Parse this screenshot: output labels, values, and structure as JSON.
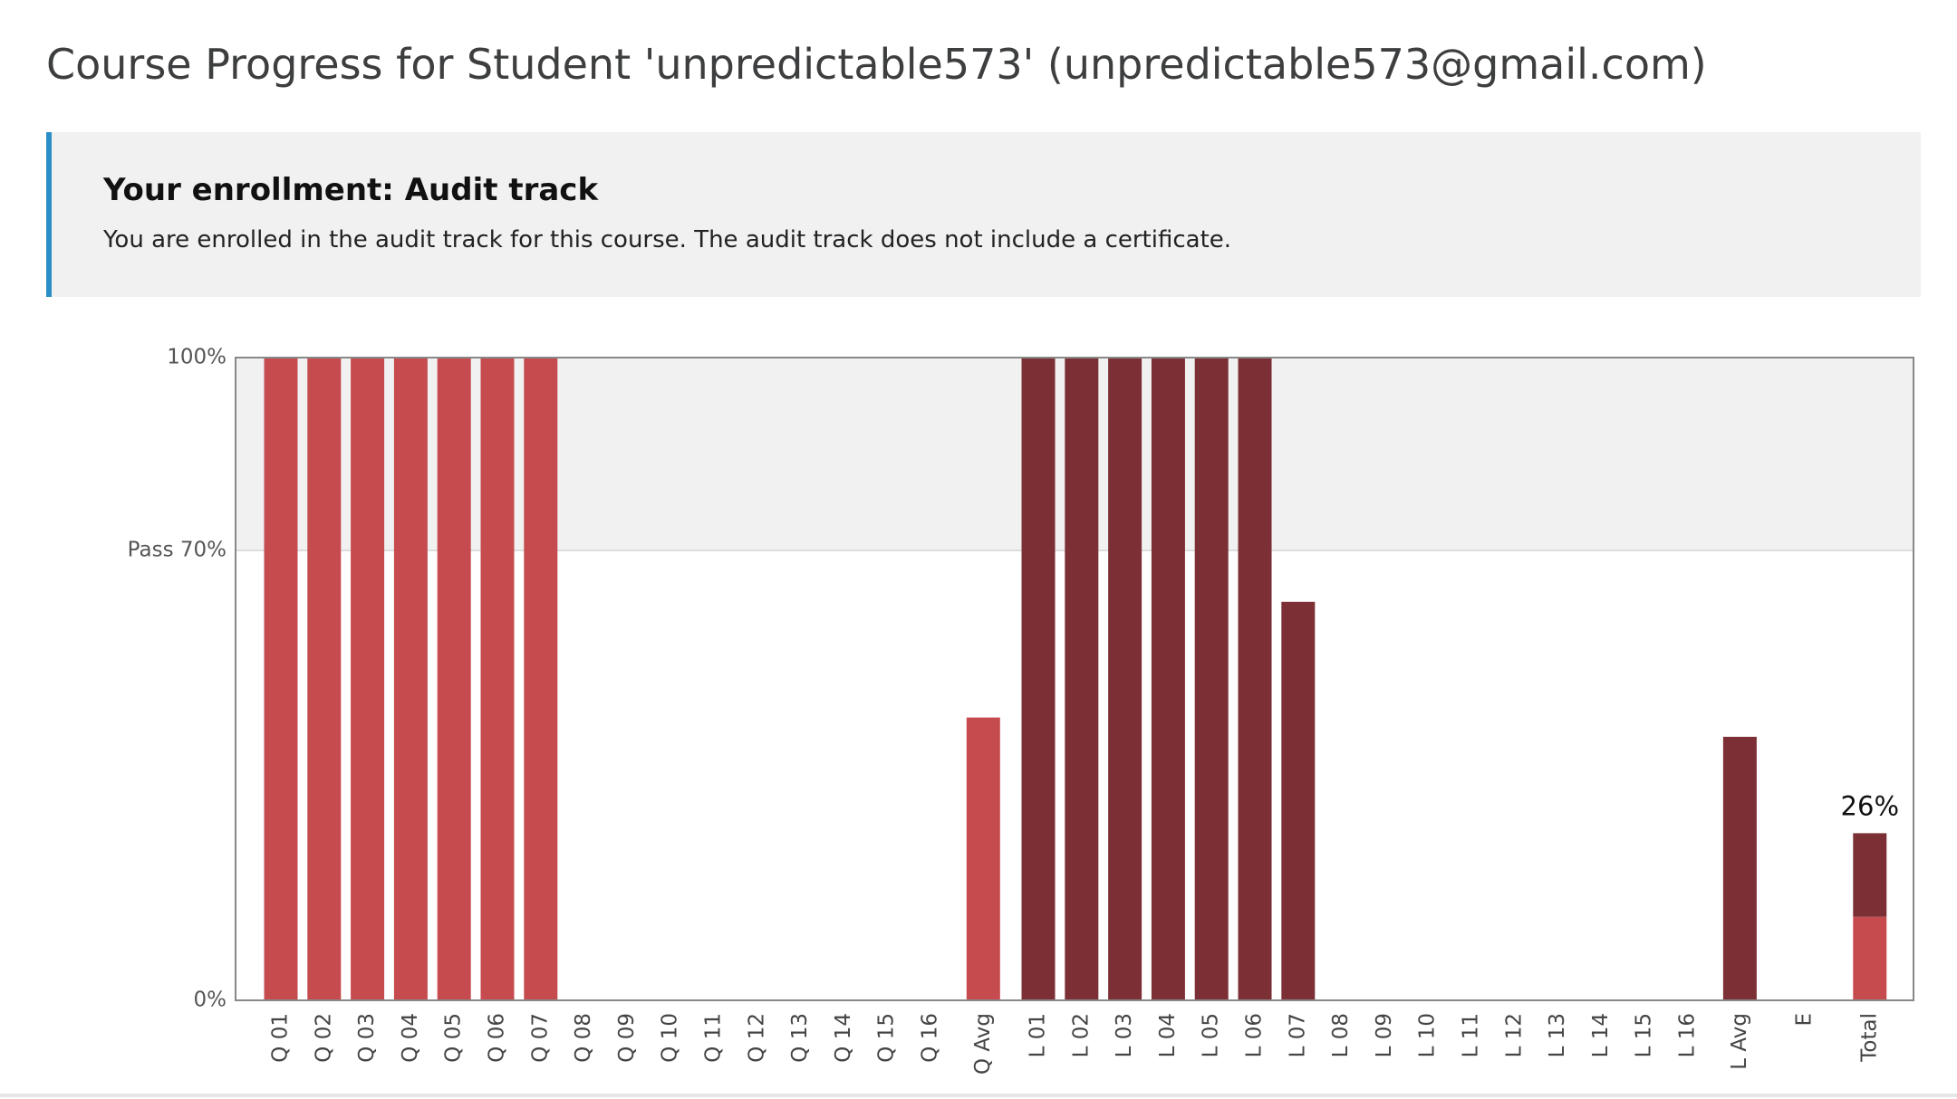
{
  "header": {
    "title": "Course Progress for Student 'unpredictable573' (unpredictable573@gmail.com)"
  },
  "banner": {
    "title": "Your enrollment: Audit track",
    "text": "You are enrolled in the audit track for this course. The audit track does not include a certificate."
  },
  "chart_data": {
    "type": "bar",
    "categories": [
      "Q 01",
      "Q 02",
      "Q 03",
      "Q 04",
      "Q 05",
      "Q 06",
      "Q 07",
      "Q 08",
      "Q 09",
      "Q 10",
      "Q 11",
      "Q 12",
      "Q 13",
      "Q 14",
      "Q 15",
      "Q 16",
      "Q Avg",
      "L 01",
      "L 02",
      "L 03",
      "L 04",
      "L 05",
      "L 06",
      "L 07",
      "L 08",
      "L 09",
      "L 10",
      "L 11",
      "L 12",
      "L 13",
      "L 14",
      "L 15",
      "L 16",
      "L Avg",
      "E",
      "Total"
    ],
    "values": [
      100,
      100,
      100,
      100,
      100,
      100,
      100,
      0,
      0,
      0,
      0,
      0,
      0,
      0,
      0,
      0,
      44,
      100,
      100,
      100,
      100,
      100,
      100,
      62,
      0,
      0,
      0,
      0,
      0,
      0,
      0,
      0,
      0,
      41,
      0,
      null
    ],
    "colors": [
      "#c64b4f",
      "#c64b4f",
      "#c64b4f",
      "#c64b4f",
      "#c64b4f",
      "#c64b4f",
      "#c64b4f",
      "#c64b4f",
      "#c64b4f",
      "#c64b4f",
      "#c64b4f",
      "#c64b4f",
      "#c64b4f",
      "#c64b4f",
      "#c64b4f",
      "#c64b4f",
      "#c64b4f",
      "#7c3035",
      "#7c3035",
      "#7c3035",
      "#7c3035",
      "#7c3035",
      "#7c3035",
      "#7c3035",
      "#7c3035",
      "#7c3035",
      "#7c3035",
      "#7c3035",
      "#7c3035",
      "#7c3035",
      "#7c3035",
      "#7c3035",
      "#7c3035",
      "#7c3035",
      "#7c3035",
      "#c64b4f"
    ],
    "total": {
      "segments": [
        13,
        13
      ],
      "colors": [
        "#c64b4f",
        "#7c3035"
      ],
      "value_label": "26%"
    },
    "ylim": [
      0,
      100
    ],
    "yticks": [
      {
        "value": 0,
        "label": "0%"
      },
      {
        "value": 70,
        "label": "Pass 70%"
      },
      {
        "value": 100,
        "label": "100%"
      }
    ],
    "pass_value": 70
  }
}
